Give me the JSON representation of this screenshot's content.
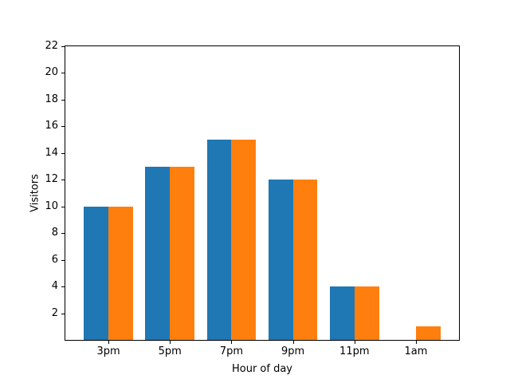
{
  "chart_data": {
    "type": "bar",
    "categories": [
      "3pm",
      "5pm",
      "7pm",
      "9pm",
      "11pm",
      "1am"
    ],
    "series": [
      {
        "name": "series-blue",
        "color": "#1f77b4",
        "values": [
          10,
          13,
          15,
          12,
          4,
          0
        ]
      },
      {
        "name": "series-orange",
        "color": "#ff7f0e",
        "values": [
          10,
          13,
          15,
          12,
          4,
          1
        ]
      }
    ],
    "title": "",
    "xlabel": "Hour of day",
    "ylabel": "Visitors",
    "ylim": [
      0,
      22
    ],
    "yticks": [
      2,
      4,
      6,
      8,
      10,
      12,
      14,
      16,
      18,
      20,
      22
    ],
    "grid": false,
    "legend": "none",
    "bar_width_fraction": 0.4,
    "xlim_units": [
      -0.7,
      5.7
    ]
  },
  "figure": {
    "background": "#ffffff",
    "spine_color": "#000000"
  }
}
